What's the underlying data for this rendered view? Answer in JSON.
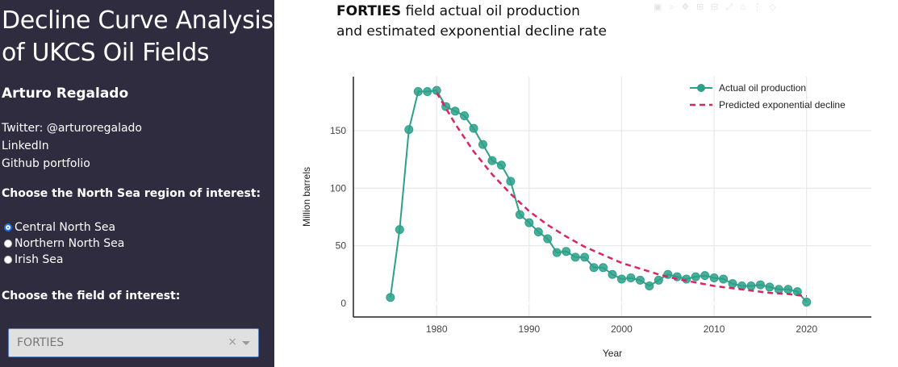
{
  "sidebar": {
    "title_line1": "Decline Curve Analysis",
    "title_line2": "of UKCS Oil Fields",
    "author": "Arturo Regalado",
    "links": [
      "Twitter: @arturoregalado",
      "LinkedIn",
      "Github portfolio"
    ],
    "region_label": "Choose the North Sea region of interest:",
    "regions": [
      {
        "label": "Central North Sea",
        "checked": true
      },
      {
        "label": "Northern North Sea",
        "checked": false
      },
      {
        "label": "Irish Sea",
        "checked": false
      }
    ],
    "field_label": "Choose the field of interest:",
    "field_value": "FORTIES",
    "clear_symbol": "×"
  },
  "chart_data": {
    "type": "line",
    "title_bold": "FORTIES",
    "title_rest": " field actual oil production",
    "title_line2": "and estimated exponential decline rate",
    "xlabel": "Year",
    "ylabel": "Million barrels",
    "xlim": [
      1971,
      2027
    ],
    "ylim": [
      -12,
      197
    ],
    "xticks": [
      1980,
      1990,
      2000,
      2010,
      2020
    ],
    "yticks": [
      0,
      50,
      100,
      150
    ],
    "grid": true,
    "legend_position": "top-right",
    "series": [
      {
        "name": "Actual oil production",
        "style": "line+markers",
        "color": "#2ca089",
        "x": [
          1975,
          1976,
          1977,
          1978,
          1979,
          1980,
          1981,
          1982,
          1983,
          1984,
          1985,
          1986,
          1987,
          1988,
          1989,
          1990,
          1991,
          1992,
          1993,
          1994,
          1995,
          1996,
          1997,
          1998,
          1999,
          2000,
          2001,
          2002,
          2003,
          2004,
          2005,
          2006,
          2007,
          2008,
          2009,
          2010,
          2011,
          2012,
          2013,
          2014,
          2015,
          2016,
          2017,
          2018,
          2019,
          2020
        ],
        "y": [
          5,
          64,
          151,
          184,
          184,
          185,
          171,
          167,
          163,
          152,
          138,
          124,
          120,
          106,
          77,
          70,
          62,
          56,
          44,
          45,
          40,
          40,
          31,
          31,
          25,
          21,
          22,
          20,
          15,
          20,
          25,
          23,
          21,
          23,
          24,
          22,
          21,
          17,
          15,
          15,
          16,
          14,
          12,
          12,
          10,
          1
        ]
      },
      {
        "name": "Predicted exponential decline",
        "style": "dash",
        "color": "#dc2462",
        "x": [
          1980,
          1982,
          1984,
          1986,
          1988,
          1990,
          1992,
          1994,
          1996,
          1998,
          2000,
          2002,
          2004,
          2006,
          2008,
          2010,
          2012,
          2014,
          2016,
          2018,
          2020
        ],
        "y": [
          183,
          156,
          132,
          112,
          95,
          80,
          68,
          58,
          49,
          42,
          35,
          30,
          25,
          21,
          18,
          15,
          13,
          11,
          9,
          8,
          6
        ]
      }
    ]
  }
}
